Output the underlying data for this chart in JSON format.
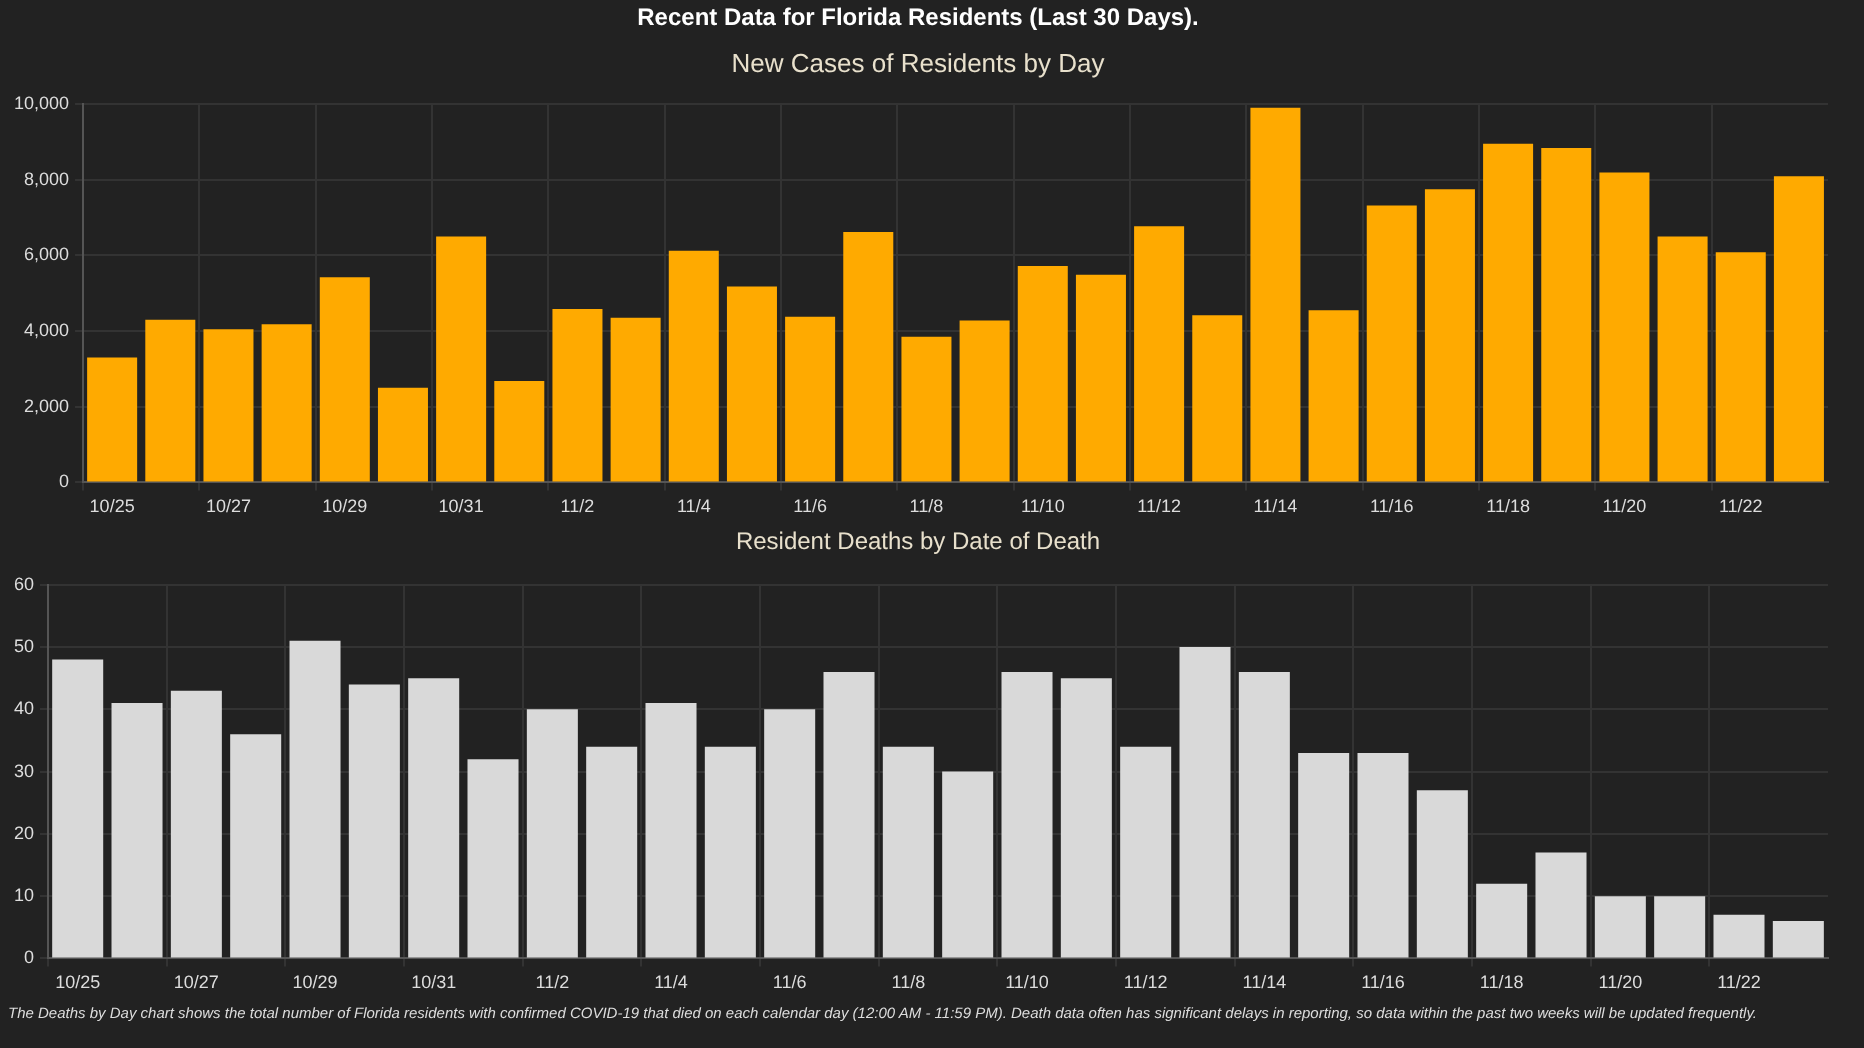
{
  "chart_data": [
    {
      "type": "bar",
      "title": "Recent Data for Florida Residents (Last 30 Days).",
      "subtitle": "New Cases of Residents by Day",
      "categories": [
        "10/25",
        null,
        "10/27",
        null,
        "10/29",
        null,
        "10/31",
        null,
        "11/2",
        null,
        "11/4",
        null,
        "11/6",
        null,
        "11/8",
        null,
        "11/10",
        null,
        "11/12",
        null,
        "11/14",
        null,
        "11/16",
        null,
        "11/18",
        null,
        "11/20",
        null,
        "11/22",
        null
      ],
      "values": [
        3300,
        4300,
        4050,
        4180,
        5420,
        2500,
        6500,
        2680,
        4580,
        4350,
        6120,
        5180,
        4380,
        6620,
        3850,
        4280,
        5720,
        5490,
        6770,
        4420,
        9900,
        4550,
        7320,
        7750,
        8950,
        8840,
        8190,
        6500,
        6080,
        8090
      ],
      "color": "#ffaa00",
      "ylim": [
        0,
        10000
      ],
      "yticks": [
        0,
        {
          "value": 2000,
          "label": "2,000"
        },
        {
          "value": 4000,
          "label": "4,000"
        },
        {
          "value": 6000,
          "label": "6,000"
        },
        {
          "value": 8000,
          "label": "8,000"
        },
        {
          "value": 10000,
          "label": "10,000"
        }
      ],
      "grid": true
    },
    {
      "type": "bar",
      "title": "Resident Deaths by Date of Death",
      "categories": [
        "10/25",
        null,
        "10/27",
        null,
        "10/29",
        null,
        "10/31",
        null,
        "11/2",
        null,
        "11/4",
        null,
        "11/6",
        null,
        "11/8",
        null,
        "11/10",
        null,
        "11/12",
        null,
        "11/14",
        null,
        "11/16",
        null,
        "11/18",
        null,
        "11/20",
        null,
        "11/22",
        null
      ],
      "values": [
        48,
        41,
        43,
        36,
        51,
        44,
        45,
        32,
        40,
        34,
        41,
        34,
        40,
        46,
        34,
        30,
        46,
        45,
        34,
        50,
        46,
        33,
        33,
        27,
        12,
        17,
        10,
        10,
        7,
        6
      ],
      "color": "#d9d9d9",
      "ylim": [
        0,
        60
      ],
      "yticks": [
        0,
        10,
        20,
        30,
        40,
        50,
        60
      ],
      "grid": true,
      "annotations": [
        "The Deaths by Day chart shows the total number of Florida residents with confirmed COVID-19 that died on each calendar day (12:00 AM - 11:59 PM). Death data often has significant delays in reporting, so data within the past two weeks will be updated frequently."
      ]
    }
  ]
}
